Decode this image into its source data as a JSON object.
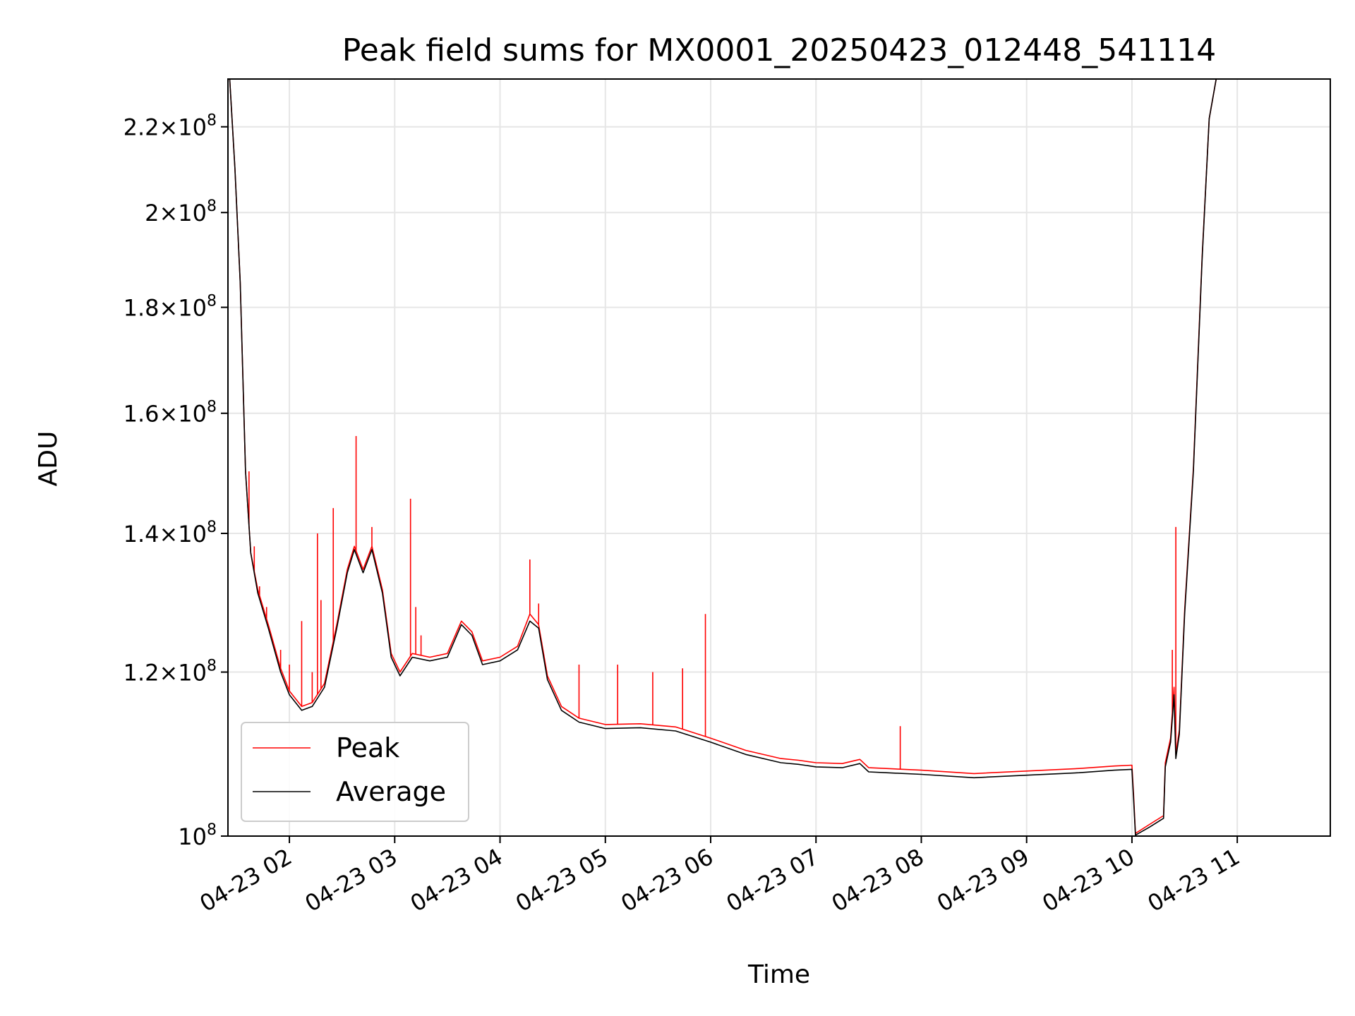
{
  "chart_data": {
    "type": "line",
    "title": "Peak field sums for MX0001_20250423_012448_541114",
    "xlabel": "Time",
    "ylabel": "ADU",
    "y_scale": "log",
    "ylim": [
      100000000,
      232000000
    ],
    "xlim": [
      "04-23 01:25",
      "04-23 11:53"
    ],
    "grid": true,
    "legend_position": "lower-left",
    "x_ticks": [
      "04-23 02",
      "04-23 03",
      "04-23 04",
      "04-23 05",
      "04-23 06",
      "04-23 07",
      "04-23 08",
      "04-23 09",
      "04-23 10",
      "04-23 11"
    ],
    "y_ticks": [
      {
        "value": 100000000,
        "mantissa": "",
        "exponent": "8"
      },
      {
        "value": 120000000,
        "mantissa": "1.2",
        "exponent": "8"
      },
      {
        "value": 140000000,
        "mantissa": "1.4",
        "exponent": "8"
      },
      {
        "value": 160000000,
        "mantissa": "1.6",
        "exponent": "8"
      },
      {
        "value": 180000000,
        "mantissa": "1.8",
        "exponent": "8"
      },
      {
        "value": 200000000,
        "mantissa": "2",
        "exponent": "8"
      },
      {
        "value": 220000000,
        "mantissa": "2.2",
        "exponent": "8"
      }
    ],
    "series": [
      {
        "name": "Average",
        "color": "#000000",
        "points": [
          [
            "04-23 01:26",
            232000000
          ],
          [
            "04-23 01:29",
            210000000
          ],
          [
            "04-23 01:32",
            185000000
          ],
          [
            "04-23 01:35",
            150000000
          ],
          [
            "04-23 01:38",
            137000000
          ],
          [
            "04-23 01:42",
            131000000
          ],
          [
            "04-23 01:48",
            126000000
          ],
          [
            "04-23 01:55",
            120000000
          ],
          [
            "04-23 02:00",
            117000000
          ],
          [
            "04-23 02:07",
            115000000
          ],
          [
            "04-23 02:13",
            115500000
          ],
          [
            "04-23 02:20",
            118000000
          ],
          [
            "04-23 02:27",
            126000000
          ],
          [
            "04-23 02:33",
            134000000
          ],
          [
            "04-23 02:37",
            137500000
          ],
          [
            "04-23 02:42",
            134000000
          ],
          [
            "04-23 02:47",
            137500000
          ],
          [
            "04-23 02:53",
            131000000
          ],
          [
            "04-23 02:58",
            122000000
          ],
          [
            "04-23 03:03",
            119500000
          ],
          [
            "04-23 03:10",
            122000000
          ],
          [
            "04-23 03:20",
            121500000
          ],
          [
            "04-23 03:30",
            122000000
          ],
          [
            "04-23 03:38",
            126500000
          ],
          [
            "04-23 03:44",
            125000000
          ],
          [
            "04-23 03:50",
            121000000
          ],
          [
            "04-23 04:00",
            121500000
          ],
          [
            "04-23 04:10",
            123000000
          ],
          [
            "04-23 04:17",
            127000000
          ],
          [
            "04-23 04:22",
            126000000
          ],
          [
            "04-23 04:27",
            119000000
          ],
          [
            "04-23 04:35",
            115000000
          ],
          [
            "04-23 04:45",
            113500000
          ],
          [
            "04-23 05:00",
            112700000
          ],
          [
            "04-23 05:20",
            112800000
          ],
          [
            "04-23 05:40",
            112400000
          ],
          [
            "04-23 06:00",
            111000000
          ],
          [
            "04-23 06:20",
            109500000
          ],
          [
            "04-23 06:40",
            108500000
          ],
          [
            "04-23 06:50",
            108300000
          ],
          [
            "04-23 07:00",
            108000000
          ],
          [
            "04-23 07:15",
            107900000
          ],
          [
            "04-23 07:25",
            108400000
          ],
          [
            "04-23 07:30",
            107400000
          ],
          [
            "04-23 07:40",
            107300000
          ],
          [
            "04-23 08:00",
            107100000
          ],
          [
            "04-23 08:30",
            106700000
          ],
          [
            "04-23 09:00",
            107000000
          ],
          [
            "04-23 09:30",
            107300000
          ],
          [
            "04-23 09:50",
            107600000
          ],
          [
            "04-23 10:00",
            107700000
          ],
          [
            "04-23 10:01",
            104000000
          ],
          [
            "04-23 10:02",
            100100000
          ],
          [
            "04-23 10:10",
            101000000
          ],
          [
            "04-23 10:18",
            102000000
          ],
          [
            "04-23 10:19",
            108000000
          ],
          [
            "04-23 10:22",
            111000000
          ],
          [
            "04-23 10:24",
            117000000
          ],
          [
            "04-23 10:25",
            109000000
          ],
          [
            "04-23 10:27",
            112000000
          ],
          [
            "04-23 10:30",
            128000000
          ],
          [
            "04-23 10:35",
            150000000
          ],
          [
            "04-23 10:40",
            190000000
          ],
          [
            "04-23 10:44",
            222000000
          ],
          [
            "04-23 10:48",
            232000000
          ]
        ]
      },
      {
        "name": "Peak",
        "color": "#ff0000",
        "points": [
          [
            "04-23 01:26",
            232000000
          ],
          [
            "04-23 01:29",
            210000000
          ],
          [
            "04-23 01:32",
            185000000
          ],
          [
            "04-23 01:35",
            150000000
          ],
          [
            "04-23 01:38",
            137000000
          ],
          [
            "04-23 01:42",
            131500000
          ],
          [
            "04-23 01:48",
            126500000
          ],
          [
            "04-23 01:55",
            120500000
          ],
          [
            "04-23 02:00",
            117500000
          ],
          [
            "04-23 02:07",
            115500000
          ],
          [
            "04-23 02:13",
            116000000
          ],
          [
            "04-23 02:20",
            118500000
          ],
          [
            "04-23 02:27",
            126500000
          ],
          [
            "04-23 02:33",
            134500000
          ],
          [
            "04-23 02:37",
            138000000
          ],
          [
            "04-23 02:42",
            134500000
          ],
          [
            "04-23 02:47",
            138000000
          ],
          [
            "04-23 02:53",
            131500000
          ],
          [
            "04-23 02:58",
            122500000
          ],
          [
            "04-23 03:03",
            120000000
          ],
          [
            "04-23 03:10",
            122500000
          ],
          [
            "04-23 03:20",
            122000000
          ],
          [
            "04-23 03:30",
            122500000
          ],
          [
            "04-23 03:38",
            127000000
          ],
          [
            "04-23 03:44",
            125500000
          ],
          [
            "04-23 03:50",
            121500000
          ],
          [
            "04-23 04:00",
            122000000
          ],
          [
            "04-23 04:10",
            123500000
          ],
          [
            "04-23 04:17",
            128000000
          ],
          [
            "04-23 04:22",
            126500000
          ],
          [
            "04-23 04:27",
            119500000
          ],
          [
            "04-23 04:35",
            115500000
          ],
          [
            "04-23 04:45",
            114000000
          ],
          [
            "04-23 05:00",
            113200000
          ],
          [
            "04-23 05:20",
            113300000
          ],
          [
            "04-23 05:40",
            112900000
          ],
          [
            "04-23 06:00",
            111500000
          ],
          [
            "04-23 06:20",
            110000000
          ],
          [
            "04-23 06:40",
            109000000
          ],
          [
            "04-23 06:50",
            108800000
          ],
          [
            "04-23 07:00",
            108500000
          ],
          [
            "04-23 07:15",
            108400000
          ],
          [
            "04-23 07:25",
            108900000
          ],
          [
            "04-23 07:30",
            107900000
          ],
          [
            "04-23 07:40",
            107800000
          ],
          [
            "04-23 08:00",
            107600000
          ],
          [
            "04-23 08:30",
            107200000
          ],
          [
            "04-23 09:00",
            107500000
          ],
          [
            "04-23 09:30",
            107800000
          ],
          [
            "04-23 09:50",
            108100000
          ],
          [
            "04-23 10:00",
            108200000
          ],
          [
            "04-23 10:01",
            104500000
          ],
          [
            "04-23 10:02",
            100300000
          ],
          [
            "04-23 10:10",
            101300000
          ],
          [
            "04-23 10:18",
            102300000
          ],
          [
            "04-23 10:19",
            108500000
          ],
          [
            "04-23 10:22",
            111500000
          ],
          [
            "04-23 10:24",
            118000000
          ],
          [
            "04-23 10:25",
            109500000
          ],
          [
            "04-23 10:27",
            112500000
          ],
          [
            "04-23 10:30",
            128500000
          ],
          [
            "04-23 10:35",
            150500000
          ],
          [
            "04-23 10:40",
            190500000
          ],
          [
            "04-23 10:44",
            222000000
          ],
          [
            "04-23 10:48",
            232000000
          ]
        ],
        "spikes": [
          [
            "04-23 01:37",
            150000000
          ],
          [
            "04-23 01:40",
            138000000
          ],
          [
            "04-23 01:43",
            132000000
          ],
          [
            "04-23 01:47",
            129000000
          ],
          [
            "04-23 01:55",
            123000000
          ],
          [
            "04-23 02:00",
            121000000
          ],
          [
            "04-23 02:07",
            127000000
          ],
          [
            "04-23 02:13",
            120000000
          ],
          [
            "04-23 02:16",
            140000000
          ],
          [
            "04-23 02:18",
            130000000
          ],
          [
            "04-23 02:25",
            144000000
          ],
          [
            "04-23 02:38",
            156000000
          ],
          [
            "04-23 02:47",
            141000000
          ],
          [
            "04-23 03:09",
            145500000
          ],
          [
            "04-23 03:12",
            129000000
          ],
          [
            "04-23 03:15",
            125000000
          ],
          [
            "04-23 04:17",
            136000000
          ],
          [
            "04-23 04:22",
            129500000
          ],
          [
            "04-23 04:45",
            121000000
          ],
          [
            "04-23 05:07",
            121000000
          ],
          [
            "04-23 05:27",
            120000000
          ],
          [
            "04-23 05:44",
            120500000
          ],
          [
            "04-23 05:57",
            128000000
          ],
          [
            "04-23 07:48",
            113000000
          ],
          [
            "04-23 10:23",
            123000000
          ],
          [
            "04-23 10:25",
            141000000
          ]
        ]
      }
    ],
    "legend": [
      "Peak",
      "Average"
    ]
  }
}
